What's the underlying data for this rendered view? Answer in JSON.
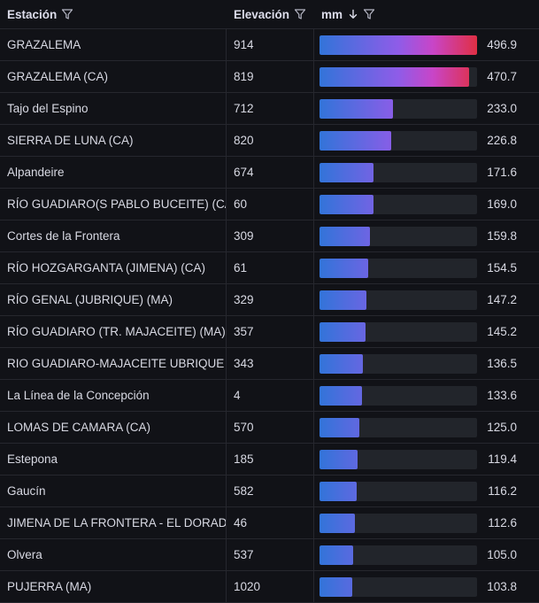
{
  "columns": {
    "station": "Estación",
    "elevation": "Elevación",
    "mm": "mm"
  },
  "colors": {
    "gradient_start": "#3274d9",
    "gradient_mid": "#8f5ce8",
    "gradient_end": "#e02f44",
    "background": "#111217"
  },
  "icons": {
    "filter": "filter-icon",
    "sort": "arrow-down-icon"
  },
  "scale_max": 496.9,
  "rows": [
    {
      "station": "GRAZALEMA",
      "elevation": "914",
      "mm": "496.9",
      "value": 496.9
    },
    {
      "station": "GRAZALEMA (CA)",
      "elevation": "819",
      "mm": "470.7",
      "value": 470.7
    },
    {
      "station": "Tajo del Espino",
      "elevation": "712",
      "mm": "233.0",
      "value": 233.0
    },
    {
      "station": "SIERRA DE LUNA (CA)",
      "elevation": "820",
      "mm": "226.8",
      "value": 226.8
    },
    {
      "station": "Alpandeire",
      "elevation": "674",
      "mm": "171.6",
      "value": 171.6
    },
    {
      "station": "RÍO GUADIARO(S PABLO BUCEITE) (CA)",
      "elevation": "60",
      "mm": "169.0",
      "value": 169.0
    },
    {
      "station": "Cortes de la Frontera",
      "elevation": "309",
      "mm": "159.8",
      "value": 159.8
    },
    {
      "station": "RÍO HOZGARGANTA (JIMENA) (CA)",
      "elevation": "61",
      "mm": "154.5",
      "value": 154.5
    },
    {
      "station": "RÍO GENAL (JUBRIQUE) (MA)",
      "elevation": "329",
      "mm": "147.2",
      "value": 147.2
    },
    {
      "station": "RÍO GUADIARO (TR. MAJACEITE) (MA)",
      "elevation": "357",
      "mm": "145.2",
      "value": 145.2
    },
    {
      "station": "RIO GUADIARO-MAJACEITE UBRIQUE",
      "elevation": "343",
      "mm": "136.5",
      "value": 136.5
    },
    {
      "station": "La Línea de la Concepción",
      "elevation": "4",
      "mm": "133.6",
      "value": 133.6
    },
    {
      "station": "LOMAS DE CAMARA (CA)",
      "elevation": "570",
      "mm": "125.0",
      "value": 125.0
    },
    {
      "station": "Estepona",
      "elevation": "185",
      "mm": "119.4",
      "value": 119.4
    },
    {
      "station": "Gaucín",
      "elevation": "582",
      "mm": "116.2",
      "value": 116.2
    },
    {
      "station": "JIMENA DE LA FRONTERA - EL DORADO",
      "elevation": "46",
      "mm": "112.6",
      "value": 112.6
    },
    {
      "station": "Olvera",
      "elevation": "537",
      "mm": "105.0",
      "value": 105.0
    },
    {
      "station": "PUJERRA (MA)",
      "elevation": "1020",
      "mm": "103.8",
      "value": 103.8
    }
  ]
}
